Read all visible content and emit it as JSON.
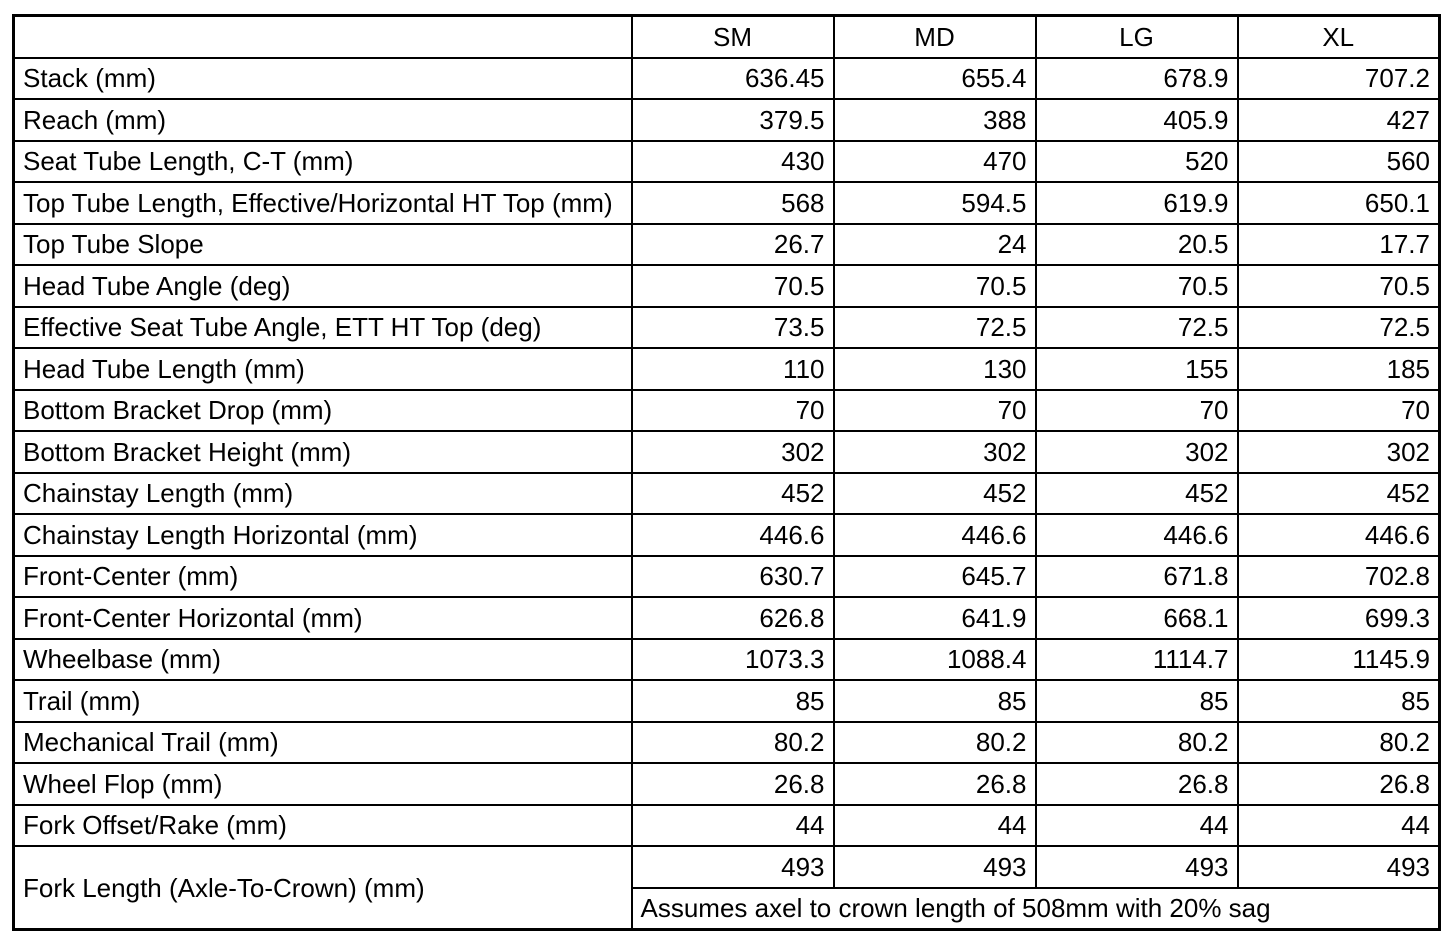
{
  "table": {
    "corner_label": "",
    "size_headers": [
      "SM",
      "MD",
      "LG",
      "XL"
    ],
    "rows": [
      {
        "label": "Stack (mm)",
        "values": [
          "636.45",
          "655.4",
          "678.9",
          "707.2"
        ]
      },
      {
        "label": "Reach (mm)",
        "values": [
          "379.5",
          "388",
          "405.9",
          "427"
        ]
      },
      {
        "label": "Seat Tube Length, C-T (mm)",
        "values": [
          "430",
          "470",
          "520",
          "560"
        ]
      },
      {
        "label": "Top Tube Length, Effective/Horizontal HT Top (mm)",
        "values": [
          "568",
          "594.5",
          "619.9",
          "650.1"
        ]
      },
      {
        "label": "Top Tube Slope",
        "values": [
          "26.7",
          "24",
          "20.5",
          "17.7"
        ]
      },
      {
        "label": "Head Tube Angle (deg)",
        "values": [
          "70.5",
          "70.5",
          "70.5",
          "70.5"
        ]
      },
      {
        "label": "Effective Seat Tube Angle, ETT HT Top (deg)",
        "values": [
          "73.5",
          "72.5",
          "72.5",
          "72.5"
        ]
      },
      {
        "label": "Head Tube Length (mm)",
        "values": [
          "110",
          "130",
          "155",
          "185"
        ]
      },
      {
        "label": "Bottom Bracket Drop (mm)",
        "values": [
          "70",
          "70",
          "70",
          "70"
        ]
      },
      {
        "label": "Bottom Bracket Height (mm)",
        "values": [
          "302",
          "302",
          "302",
          "302"
        ]
      },
      {
        "label": "Chainstay Length (mm)",
        "values": [
          "452",
          "452",
          "452",
          "452"
        ]
      },
      {
        "label": "Chainstay Length Horizontal (mm)",
        "values": [
          "446.6",
          "446.6",
          "446.6",
          "446.6"
        ]
      },
      {
        "label": "Front-Center (mm)",
        "values": [
          "630.7",
          "645.7",
          "671.8",
          "702.8"
        ]
      },
      {
        "label": "Front-Center Horizontal (mm)",
        "values": [
          "626.8",
          "641.9",
          "668.1",
          "699.3"
        ]
      },
      {
        "label": "Wheelbase (mm)",
        "values": [
          "1073.3",
          "1088.4",
          "1114.7",
          "1145.9"
        ]
      },
      {
        "label": "Trail (mm)",
        "values": [
          "85",
          "85",
          "85",
          "85"
        ]
      },
      {
        "label": "Mechanical Trail (mm)",
        "values": [
          "80.2",
          "80.2",
          "80.2",
          "80.2"
        ]
      },
      {
        "label": "Wheel Flop (mm)",
        "values": [
          "26.8",
          "26.8",
          "26.8",
          "26.8"
        ]
      },
      {
        "label": "Fork Offset/Rake (mm)",
        "values": [
          "44",
          "44",
          "44",
          "44"
        ]
      }
    ],
    "fork_length_row": {
      "label": "Fork Length (Axle-To-Crown) (mm)",
      "values": [
        "493",
        "493",
        "493",
        "493"
      ],
      "note": "Assumes axel to crown length of 508mm with 20% sag"
    }
  }
}
